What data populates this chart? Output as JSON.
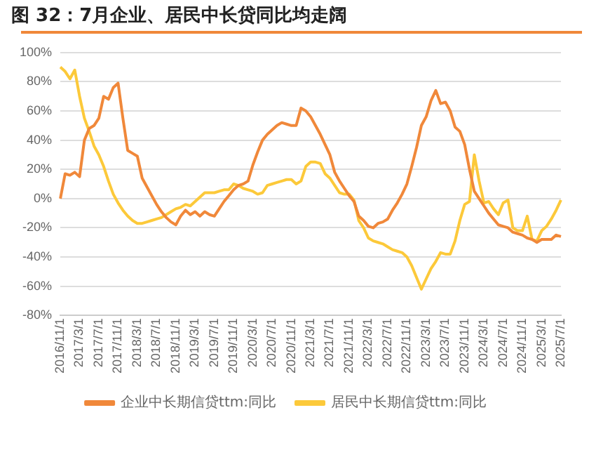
{
  "chart_data": {
    "type": "line",
    "title": "图 32：7月企业、居民中长贷同比均走阔",
    "categories": [
      "2016/11/1",
      null,
      null,
      null,
      "2017/3/1",
      null,
      null,
      null,
      "2017/7/1",
      null,
      null,
      null,
      "2017/11/1",
      null,
      null,
      null,
      "2018/3/1",
      null,
      null,
      null,
      "2018/7/1",
      null,
      null,
      null,
      "2018/11/1",
      null,
      null,
      null,
      "2019/3/1",
      null,
      null,
      null,
      "2019/7/1",
      null,
      null,
      null,
      "2019/11/1",
      null,
      null,
      null,
      "2020/3/1",
      null,
      null,
      null,
      "2020/7/1",
      null,
      null,
      null,
      "2020/11/1",
      null,
      null,
      null,
      "2021/3/1",
      null,
      null,
      null,
      "2021/7/1",
      null,
      null,
      null,
      "2021/11/1",
      null,
      null,
      null,
      "2022/3/1",
      null,
      null,
      null,
      "2022/7/1",
      null,
      null,
      null,
      "2022/11/1",
      null,
      null,
      null,
      "2023/3/1",
      null,
      null,
      null,
      "2023/7/1",
      null,
      null,
      null,
      "2023/11/1",
      null,
      null,
      null,
      "2024/3/1",
      null,
      null,
      null,
      "2024/7/1",
      null,
      null,
      null,
      "2024/11/1",
      null,
      null,
      null,
      "2025/3/1",
      null,
      null,
      null,
      "2025/7/1"
    ],
    "series": [
      {
        "name": "企业中长期信贷ttm:同比",
        "color": "#f0883a",
        "values": [
          0,
          17,
          16,
          18,
          15,
          40,
          48,
          50,
          55,
          70,
          68,
          76,
          79,
          55,
          33,
          31,
          29,
          14,
          8,
          2,
          -4,
          -9,
          -13,
          -16,
          -18,
          -12,
          -8,
          -11,
          -9,
          -12,
          -9,
          -11,
          -12,
          -7,
          -2,
          2,
          6,
          9,
          10,
          12,
          23,
          32,
          40,
          44,
          47,
          50,
          52,
          51,
          50,
          50,
          62,
          60,
          56,
          50,
          44,
          37,
          30,
          18,
          12,
          7,
          2,
          -2,
          -12,
          -15,
          -19,
          -20,
          -17,
          -16,
          -14,
          -8,
          -3,
          3,
          10,
          22,
          35,
          50,
          56,
          67,
          74,
          65,
          66,
          60,
          49,
          46,
          37,
          20,
          5,
          0,
          -5,
          -10,
          -14,
          -18,
          -19,
          -20,
          -23,
          -24,
          -25,
          -27,
          -28,
          -30,
          -28,
          -28,
          -28,
          -25,
          -26
        ]
      },
      {
        "name": "居民中长期信贷ttm:同比",
        "color": "#fcc93a",
        "values": [
          90,
          87,
          82,
          88,
          70,
          55,
          46,
          36,
          30,
          22,
          12,
          3,
          -3,
          -8,
          -12,
          -15,
          -17,
          -17,
          -16,
          -15,
          -14,
          -13,
          -11,
          -9,
          -7,
          -6,
          -4,
          -5,
          -2,
          1,
          4,
          4,
          4,
          5,
          6,
          6,
          10,
          9,
          7,
          6,
          5,
          3,
          4,
          9,
          10,
          11,
          12,
          13,
          13,
          10,
          12,
          22,
          25,
          25,
          24,
          17,
          14,
          9,
          4,
          3,
          3,
          -1,
          -15,
          -20,
          -27,
          -29,
          -30,
          -31,
          -33,
          -35,
          -36,
          -37,
          -40,
          -46,
          -54,
          -62,
          -55,
          -48,
          -43,
          -37,
          -38,
          -38,
          -29,
          -15,
          -4,
          -2,
          30,
          12,
          -3,
          -2,
          -7,
          -11,
          -3,
          -1,
          -20,
          -22,
          -22,
          -12,
          -28,
          -29,
          -22,
          -19,
          -14,
          -8,
          -1
        ]
      }
    ],
    "ylim": [
      -80,
      100
    ],
    "yticks": [
      {
        "value": -80,
        "label": "-80%"
      },
      {
        "value": -60,
        "label": "-60%"
      },
      {
        "value": -40,
        "label": "-40%"
      },
      {
        "value": -20,
        "label": "-20%"
      },
      {
        "value": 0,
        "label": "0%"
      },
      {
        "value": 20,
        "label": "20%"
      },
      {
        "value": 40,
        "label": "40%"
      },
      {
        "value": 60,
        "label": "60%"
      },
      {
        "value": 80,
        "label": "80%"
      },
      {
        "value": 100,
        "label": "100%"
      }
    ],
    "grid": "y",
    "legend": "bottom",
    "marker": "none",
    "line_style": "solid"
  }
}
